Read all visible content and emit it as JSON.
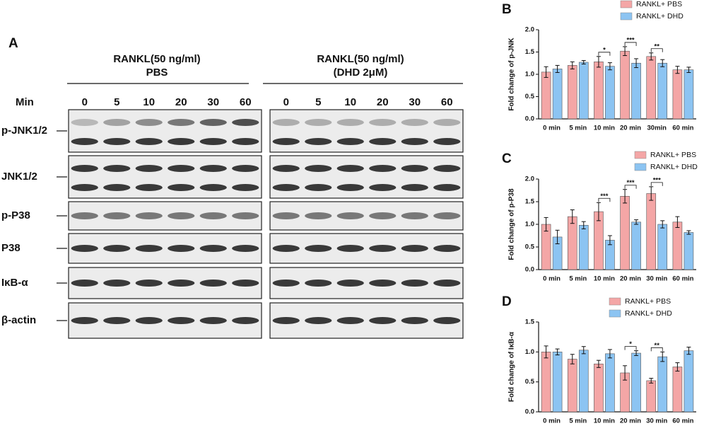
{
  "panel_a": {
    "label": "A",
    "groups": [
      {
        "header": "RANKL(50 ng/ml)",
        "subheader": "PBS"
      },
      {
        "header": "RANKL(50 ng/ml)",
        "subheader": "(DHD 2μM)"
      }
    ],
    "time_heading": "Min",
    "times": [
      "0",
      "5",
      "10",
      "20",
      "30",
      "60"
    ],
    "rows": [
      "p-JNK1/2",
      "JNK1/2",
      "p-P38",
      "P38",
      "IκB-α",
      "β-actin"
    ]
  },
  "chart_data": [
    {
      "type": "bar",
      "panel": "B",
      "ylabel": "Fold change of p-JNK",
      "categories": [
        "0 min",
        "5 min",
        "10 min",
        "20 min",
        "30min",
        "60 min"
      ],
      "series": [
        {
          "name": "RANKL+ PBS",
          "color": "#f4a6a6",
          "values": [
            1.05,
            1.2,
            1.28,
            1.52,
            1.4,
            1.1
          ],
          "errors": [
            0.12,
            0.08,
            0.12,
            0.1,
            0.08,
            0.08
          ]
        },
        {
          "name": "RANKL+ DHD",
          "color": "#8cc4f2",
          "values": [
            1.12,
            1.27,
            1.18,
            1.25,
            1.25,
            1.1
          ],
          "errors": [
            0.08,
            0.04,
            0.08,
            0.1,
            0.08,
            0.06
          ]
        }
      ],
      "ylim": [
        0,
        2
      ],
      "yticks": [
        {
          "value": 0,
          "label": "0.0"
        },
        0.5,
        {
          "value": 1,
          "label": "1.0"
        },
        1.5,
        {
          "value": 2,
          "label": "2.0"
        }
      ],
      "annotations": [
        {
          "category": "10 min",
          "text": "*"
        },
        {
          "category": "20 min",
          "text": "***"
        },
        {
          "category": "30min",
          "text": "**"
        }
      ]
    },
    {
      "type": "bar",
      "panel": "C",
      "ylabel": "Fold change of p-P38",
      "categories": [
        "0 min",
        "5 min",
        "10 min",
        "20 min",
        "30 min",
        "60 min"
      ],
      "series": [
        {
          "name": "RANKL+ PBS",
          "color": "#f4a6a6",
          "values": [
            1.0,
            1.17,
            1.28,
            1.62,
            1.68,
            1.05
          ],
          "errors": [
            0.15,
            0.15,
            0.2,
            0.15,
            0.15,
            0.12
          ]
        },
        {
          "name": "RANKL+ DHD",
          "color": "#8cc4f2",
          "values": [
            0.72,
            0.98,
            0.65,
            1.05,
            1.0,
            0.82
          ],
          "errors": [
            0.15,
            0.08,
            0.1,
            0.05,
            0.08,
            0.04
          ]
        }
      ],
      "ylim": [
        0,
        2
      ],
      "yticks": [
        {
          "value": 0,
          "label": "0.0"
        },
        0.5,
        {
          "value": 1,
          "label": "1.0"
        },
        1.5,
        {
          "value": 2,
          "label": "2.0"
        }
      ],
      "annotations": [
        {
          "category": "10 min",
          "text": "***"
        },
        {
          "category": "20 min",
          "text": "***"
        },
        {
          "category": "30 min",
          "text": "***"
        }
      ]
    },
    {
      "type": "bar",
      "panel": "D",
      "ylabel": "Fold change of IκB-α",
      "categories": [
        "0 min",
        "5 min",
        "10 min",
        "20 min",
        "30 min",
        "60 min"
      ],
      "series": [
        {
          "name": "RANKL+ PBS",
          "color": "#f4a6a6",
          "values": [
            1.0,
            0.88,
            0.8,
            0.65,
            0.52,
            0.75
          ],
          "errors": [
            0.1,
            0.08,
            0.06,
            0.12,
            0.04,
            0.07
          ]
        },
        {
          "name": "RANKL+ DHD",
          "color": "#8cc4f2",
          "values": [
            1.0,
            1.03,
            0.97,
            0.98,
            0.92,
            1.02
          ],
          "errors": [
            0.05,
            0.06,
            0.07,
            0.04,
            0.08,
            0.06
          ]
        }
      ],
      "ylim": [
        0,
        1.5
      ],
      "yticks": [
        {
          "value": 0,
          "label": "0.0"
        },
        0.5,
        {
          "value": 1,
          "label": "1.0"
        },
        1.5
      ],
      "annotations": [
        {
          "category": "20 min",
          "text": "*"
        },
        {
          "category": "30 min",
          "text": "**"
        }
      ]
    }
  ]
}
